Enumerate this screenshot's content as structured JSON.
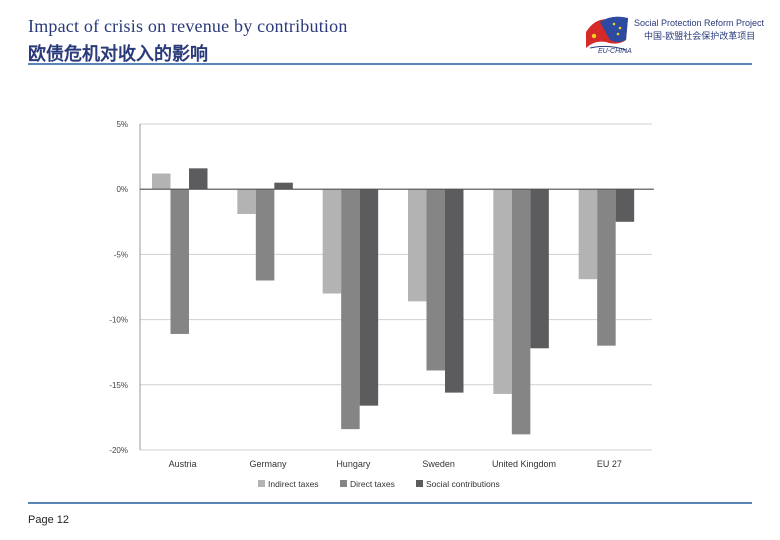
{
  "slide": {
    "title_en": "Impact of crisis on revenue by contribution",
    "title_cn": "欧债危机对收入的影响",
    "footer": "Page 12"
  },
  "logo": {
    "name_en": "Social Protection Reform Project",
    "name_cn": "中国-欧盟社会保护改革项目",
    "tag": "EU-CHINA",
    "icon": "eu-china-flag-logo-icon"
  },
  "colors": {
    "title": "#2a3a7a",
    "rule": "#5a85b8",
    "indirect": "#b3b3b3",
    "direct": "#858585",
    "social": "#5c5c5f"
  },
  "chart_data": {
    "type": "bar",
    "categories": [
      "Austria",
      "Germany",
      "Hungary",
      "Sweden",
      "United Kingdom",
      "EU 27"
    ],
    "series": [
      {
        "name": "Indirect taxes",
        "values": [
          1.2,
          -1.9,
          -8.0,
          -8.6,
          -15.7,
          -6.9
        ]
      },
      {
        "name": "Direct taxes",
        "values": [
          -11.1,
          -7.0,
          -18.4,
          -13.9,
          -18.8,
          -12.0
        ]
      },
      {
        "name": "Social contributions",
        "values": [
          1.6,
          0.5,
          -16.6,
          -15.6,
          -12.2,
          -2.5
        ]
      }
    ],
    "yticks": [
      "5%",
      "0%",
      "-5%",
      "-10%",
      "-15%",
      "-20%"
    ],
    "ytick_values": [
      5,
      0,
      -5,
      -10,
      -15,
      -20
    ],
    "ylim": [
      -20,
      5
    ],
    "grid": true,
    "legend": "bottom",
    "title": "",
    "xlabel": "",
    "ylabel": ""
  }
}
